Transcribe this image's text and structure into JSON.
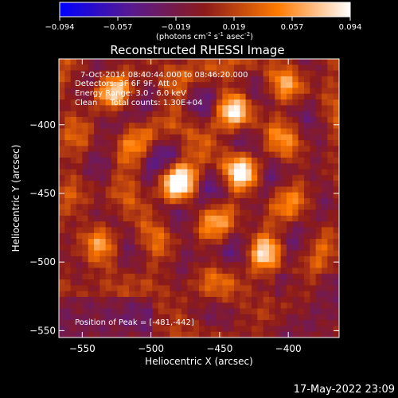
{
  "chart_data": {
    "type": "heatmap",
    "title": "Reconstructed RHESSI Image",
    "colorbar": {
      "ticks": [
        "-0.094",
        "-0.057",
        "-0.019",
        "0.019",
        "0.057",
        "0.094"
      ],
      "range": [
        -0.094,
        0.094
      ],
      "units_prefix": "(photons cm",
      "units_sup1": "-2",
      "units_mid": " s",
      "units_sup2": "-1",
      "units_mid2": " asec",
      "units_sup3": "-2",
      "units_suffix": ")"
    },
    "xlabel": "Heliocentric X (arcsec)",
    "ylabel": "Heliocentric Y (arcsec)",
    "xlim": [
      -567,
      -363
    ],
    "ylim": [
      -555,
      -352
    ],
    "xticks": [
      {
        "value": -550,
        "label": "−550"
      },
      {
        "value": -500,
        "label": "−500"
      },
      {
        "value": -450,
        "label": "−450"
      },
      {
        "value": -400,
        "label": "−400"
      }
    ],
    "yticks": [
      {
        "value": -400,
        "label": "−400"
      },
      {
        "value": -450,
        "label": "−450"
      },
      {
        "value": -500,
        "label": "−500"
      },
      {
        "value": -550,
        "label": "−550"
      }
    ],
    "peaks": [
      {
        "x": -481,
        "y": -442,
        "value": 0.094
      },
      {
        "x": -433,
        "y": -435,
        "value": 0.082
      },
      {
        "x": -440,
        "y": -390,
        "value": 0.07
      },
      {
        "x": -417,
        "y": -493,
        "value": 0.072
      },
      {
        "x": -527,
        "y": -377,
        "value": 0.055
      },
      {
        "x": -535,
        "y": -485,
        "value": 0.045
      },
      {
        "x": -402,
        "y": -372,
        "value": 0.04
      }
    ],
    "annotations": {
      "line1": "7-Oct-2014 08:40:44.000 to 08:46:20.000",
      "line2": "Detectors: 3F 6F 9F, Att 0",
      "line3": "Energy Range: 3.0 - 6.0 keV",
      "line4": "Clean     Total counts: 1.30E+04",
      "peak": "Position of Peak = [-481,-442]"
    },
    "grid": false
  },
  "footer": {
    "timestamp": "17-May-2022 23:09"
  }
}
